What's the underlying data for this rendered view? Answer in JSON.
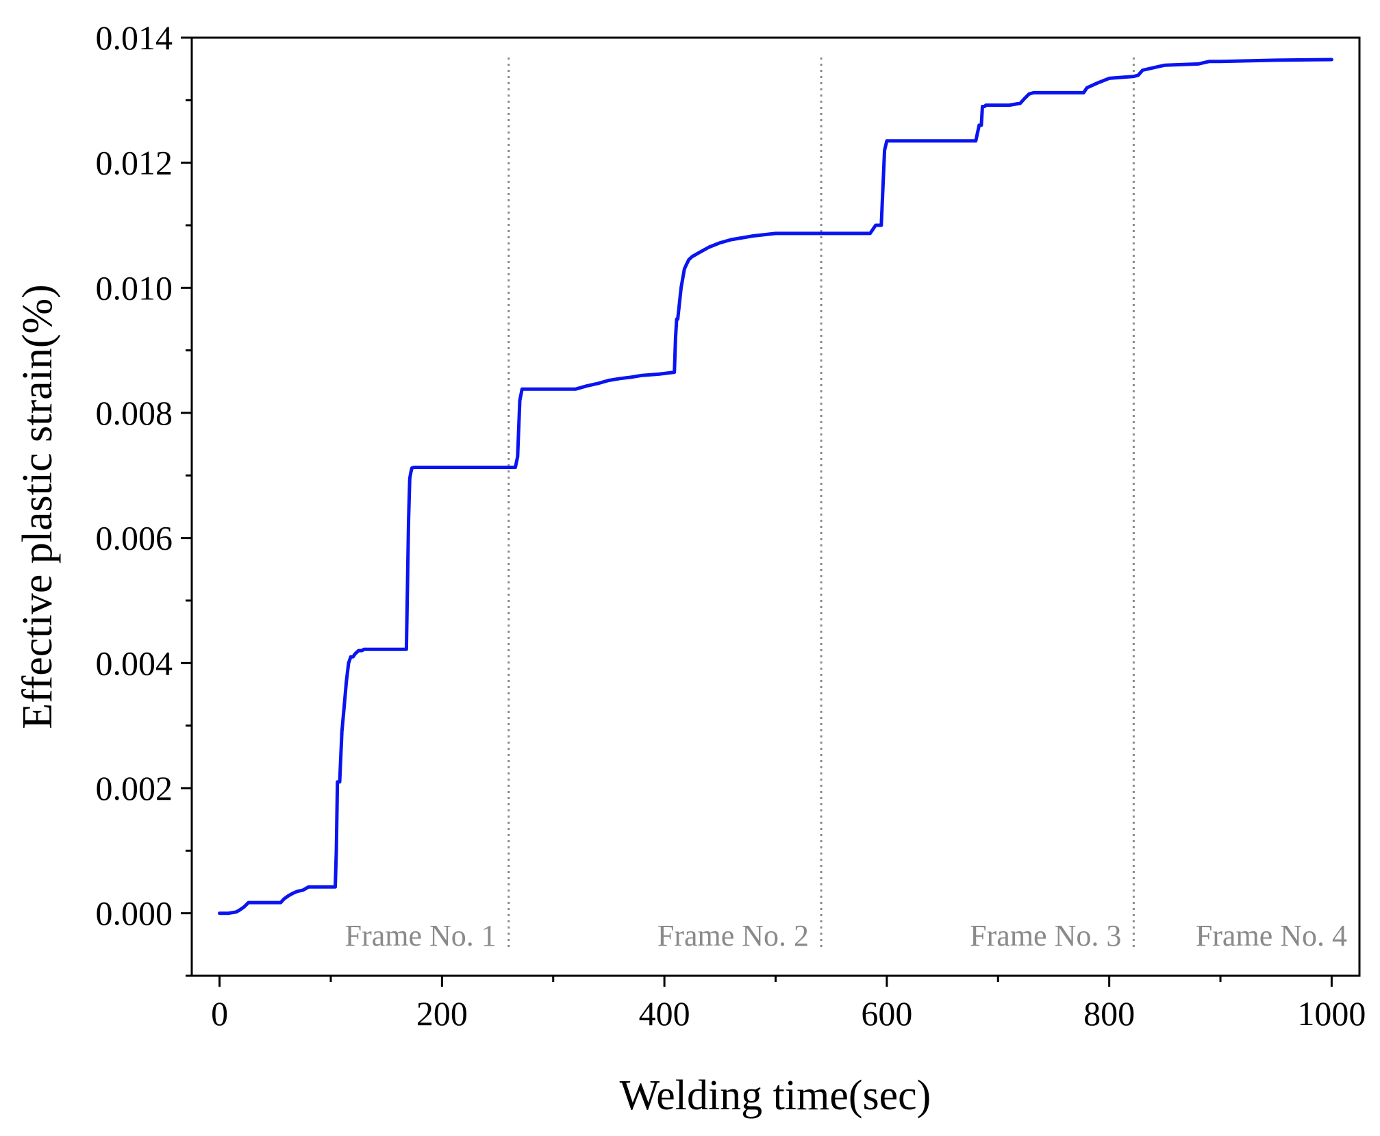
{
  "chart_data": {
    "type": "line",
    "title": "",
    "xlabel": "Welding time(sec)",
    "ylabel": "Effective plastic strain(%)",
    "xlim": [
      -25,
      1025
    ],
    "ylim": [
      -0.001,
      0.014
    ],
    "grid": false,
    "x_ticks": [
      0,
      200,
      400,
      600,
      800,
      1000
    ],
    "x_tick_labels": [
      "0",
      "200",
      "400",
      "600",
      "800",
      "1000"
    ],
    "y_ticks": [
      0.0,
      0.002,
      0.004,
      0.006,
      0.008,
      0.01,
      0.012,
      0.014
    ],
    "y_tick_labels": [
      "0.000",
      "0.002",
      "0.004",
      "0.006",
      "0.008",
      "0.010",
      "0.012",
      "0.014"
    ],
    "x_minor_ticks": [
      100,
      300,
      500,
      700,
      900
    ],
    "y_minor_ticks": [
      -0.001,
      0.001,
      0.003,
      0.005,
      0.007,
      0.009,
      0.011,
      0.013
    ],
    "series": [
      {
        "color": "#0a14f0",
        "x": [
          0,
          8,
          15,
          18,
          22,
          26,
          30,
          55,
          58,
          62,
          66,
          70,
          75,
          80,
          85,
          104,
          105,
          106,
          108,
          110,
          112,
          114,
          116,
          118,
          120,
          122,
          125,
          128,
          130,
          135,
          140,
          150,
          160,
          168,
          170,
          171,
          172,
          173,
          175,
          180,
          200,
          230,
          260,
          266,
          268,
          270,
          272,
          275,
          280,
          300,
          320,
          330,
          340,
          350,
          360,
          370,
          380,
          395,
          409,
          410,
          411,
          412,
          415,
          418,
          420,
          422,
          425,
          430,
          440,
          450,
          460,
          480,
          500,
          550,
          585,
          590,
          595,
          597,
          598,
          600,
          602,
          610,
          640,
          680,
          683,
          685,
          686,
          688,
          689,
          700,
          710,
          720,
          724,
          728,
          732,
          760,
          777,
          780,
          790,
          800,
          815,
          822,
          826,
          830,
          840,
          850,
          880,
          890,
          900,
          950,
          1000
        ],
        "y": [
          0.0,
          0.0,
          2e-05,
          5e-05,
          0.0001,
          0.00017,
          0.00017,
          0.00017,
          0.00023,
          0.00028,
          0.00032,
          0.00035,
          0.00037,
          0.00042,
          0.00042,
          0.00042,
          0.001,
          0.0021,
          0.0021,
          0.0029,
          0.0033,
          0.0037,
          0.004,
          0.0041,
          0.0041,
          0.00415,
          0.0042,
          0.0042,
          0.00422,
          0.00422,
          0.00422,
          0.00422,
          0.00422,
          0.00422,
          0.0063,
          0.00695,
          0.00705,
          0.00712,
          0.00713,
          0.00713,
          0.00713,
          0.00713,
          0.00713,
          0.00713,
          0.0073,
          0.0082,
          0.00838,
          0.00838,
          0.00838,
          0.00838,
          0.00838,
          0.00843,
          0.00847,
          0.00852,
          0.00855,
          0.00857,
          0.0086,
          0.00862,
          0.00865,
          0.0092,
          0.0095,
          0.0095,
          0.01,
          0.0103,
          0.01038,
          0.01045,
          0.0105,
          0.01055,
          0.01065,
          0.01072,
          0.01077,
          0.01083,
          0.01087,
          0.01087,
          0.01087,
          0.011,
          0.011,
          0.0118,
          0.0122,
          0.01235,
          0.01235,
          0.01235,
          0.01235,
          0.01235,
          0.0126,
          0.0126,
          0.0129,
          0.0129,
          0.01292,
          0.01292,
          0.01292,
          0.01295,
          0.01303,
          0.0131,
          0.01312,
          0.01312,
          0.01312,
          0.0132,
          0.01328,
          0.01335,
          0.01337,
          0.01338,
          0.0134,
          0.01348,
          0.01352,
          0.01356,
          0.01358,
          0.01362,
          0.01362,
          0.01364,
          0.01365
        ]
      }
    ],
    "separators": [
      260,
      541,
      822
    ],
    "annotations": [
      "Frame No. 1",
      "Frame No. 2",
      "Frame No. 3",
      "Frame No. 4"
    ]
  }
}
